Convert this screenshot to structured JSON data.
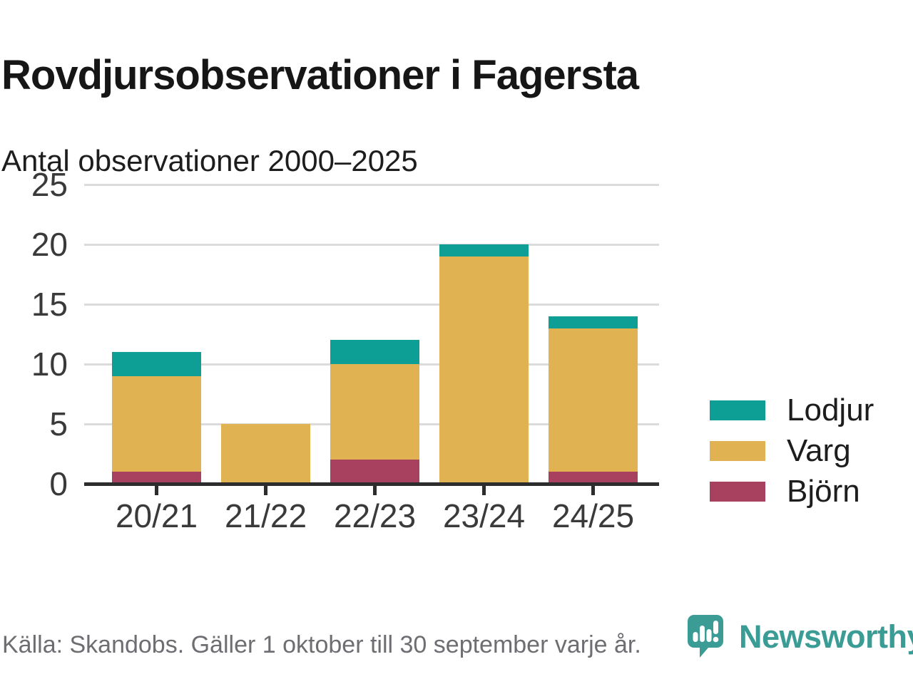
{
  "header": {
    "title": "Rovdjursobservationer i Fagersta",
    "subtitle": "Antal observationer 2000–2025"
  },
  "chart_data": {
    "type": "bar",
    "stacked": true,
    "title": "Rovdjursobservationer i Fagersta",
    "subtitle": "Antal observationer 2000–2025",
    "xlabel": "",
    "ylabel": "",
    "categories": [
      "20/21",
      "21/22",
      "22/23",
      "23/24",
      "24/25"
    ],
    "series": [
      {
        "name": "Björn",
        "color": "#A8415F",
        "values": [
          1,
          0,
          2,
          0,
          1
        ]
      },
      {
        "name": "Varg",
        "color": "#E0B252",
        "values": [
          8,
          5,
          8,
          19,
          12
        ]
      },
      {
        "name": "Lodjur",
        "color": "#0D9F95",
        "values": [
          2,
          0,
          2,
          1,
          1
        ]
      }
    ],
    "totals": [
      11,
      5,
      12,
      20,
      14
    ],
    "ylim": [
      0,
      25
    ],
    "yticks": [
      0,
      5,
      10,
      15,
      20,
      25
    ],
    "grid": true,
    "legend_position": "right"
  },
  "legend": {
    "items": [
      {
        "label": "Lodjur",
        "color": "#0D9F95"
      },
      {
        "label": "Varg",
        "color": "#E0B252"
      },
      {
        "label": "Björn",
        "color": "#A8415F"
      }
    ]
  },
  "footer": {
    "source": "Källa: Skandobs. Gäller 1 oktober till 30 september varje år.",
    "brand": "Newsworthy"
  },
  "colors": {
    "teal": "#0D9F95",
    "gold": "#E0B252",
    "maroon": "#A8415F",
    "brand_teal": "#3A9C95",
    "grid": "#DBDBDB",
    "axis": "#2D2D2D",
    "text": "#161616",
    "muted": "#6D6D72"
  }
}
